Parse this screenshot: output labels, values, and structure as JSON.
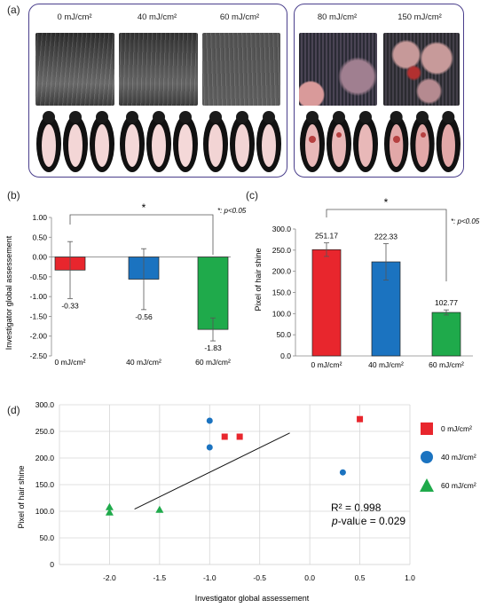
{
  "panel_a": {
    "label": "(a)",
    "doses": [
      "0 mJ/cm²",
      "40 mJ/cm²",
      "60 mJ/cm²",
      "80 mJ/cm²",
      "150 mJ/cm²"
    ]
  },
  "panel_b": {
    "label": "(b)",
    "significance": "*",
    "pnote": "*: p<0.05"
  },
  "panel_c": {
    "label": "(c)",
    "significance": "*",
    "pnote": "*: p<0.05"
  },
  "panel_d": {
    "label": "(d)",
    "r2": "R² = 0.998",
    "pvalue_prefix": "p",
    "pvalue_rest": "-value = 0.029"
  },
  "colors": {
    "red": "#e8262d",
    "blue": "#1b73c0",
    "green": "#1faa4b"
  },
  "chart_data": [
    {
      "type": "bar",
      "ylabel": "Investigator global assessement",
      "categories": [
        "0 mJ/cm²",
        "40 mJ/cm²",
        "60 mJ/cm²"
      ],
      "values": [
        -0.33,
        -0.56,
        -1.83
      ],
      "value_labels": [
        "-0.33",
        "-0.56",
        "-1.83"
      ],
      "errors": [
        0.72,
        0.77,
        0.29
      ],
      "ylim": [
        -2.5,
        1.0
      ],
      "yticks": [
        1.0,
        0.5,
        0.0,
        -0.5,
        -1.0,
        -1.5,
        -2.0,
        -2.5
      ],
      "ytick_labels": [
        "1.00",
        "0.50",
        "0.00",
        "-0.50",
        "-1.00",
        "-1.50",
        "-2.00",
        "-2.50"
      ],
      "grid": false
    },
    {
      "type": "bar",
      "ylabel": "Pixel of hair shine",
      "categories": [
        "0 mJ/cm²",
        "40 mJ/cm²",
        "60 mJ/cm²"
      ],
      "values": [
        251.17,
        222.33,
        102.77
      ],
      "value_labels": [
        "251.17",
        "222.33",
        "102.77"
      ],
      "errors": [
        16,
        43,
        6
      ],
      "ylim": [
        0,
        300
      ],
      "yticks": [
        300,
        250,
        200,
        150,
        100,
        50,
        0
      ],
      "ytick_labels": [
        "300.0",
        "250.0",
        "200.0",
        "150.0",
        "100.0",
        "50.0",
        "0.0"
      ],
      "grid": false
    },
    {
      "type": "scatter",
      "xlabel": "Investigator global assessement",
      "ylabel": "Pixel of hair shine",
      "xlim": [
        -2.5,
        1.0
      ],
      "ylim": [
        0,
        300
      ],
      "xticks": [
        -2.0,
        -1.5,
        -1.0,
        -0.5,
        0.0,
        0.5,
        1.0
      ],
      "xtick_labels": [
        "-2.0",
        "-1.5",
        "-1.0",
        "-0.5",
        "0.0",
        "0.5",
        "1.0"
      ],
      "yticks": [
        0,
        50,
        100,
        150,
        200,
        250,
        300
      ],
      "ytick_labels": [
        "0",
        "50.0",
        "100.0",
        "150.0",
        "200.0",
        "250.0",
        "300.0"
      ],
      "grid": true,
      "legend_position": "right",
      "series": [
        {
          "name": "0 mJ/cm²",
          "marker": "square",
          "x": [
            -0.85,
            -0.7,
            0.5
          ],
          "y": [
            240,
            240,
            273
          ]
        },
        {
          "name": "40 mJ/cm²",
          "marker": "circle",
          "x": [
            -1.0,
            -1.0,
            0.33
          ],
          "y": [
            270,
            220,
            173
          ]
        },
        {
          "name": "60 mJ/cm²",
          "marker": "triangle",
          "x": [
            -2.0,
            -2.0,
            -1.5
          ],
          "y": [
            108,
            98,
            103
          ]
        }
      ],
      "trendline": {
        "x": [
          -1.75,
          -0.2
        ],
        "y": [
          104,
          247
        ]
      }
    }
  ]
}
